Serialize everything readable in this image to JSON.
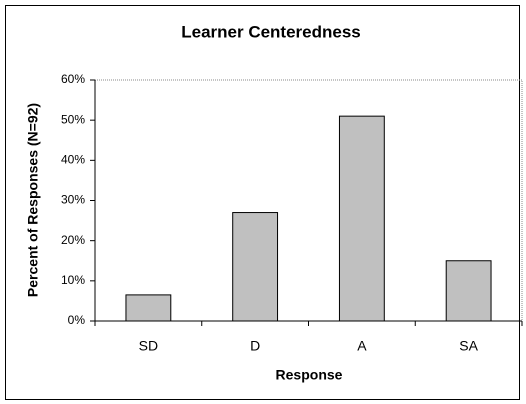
{
  "chart_data": {
    "type": "bar",
    "title": "Learner Centeredness",
    "xlabel": "Response",
    "ylabel": "Percent of Responses (N=92)",
    "categories": [
      "SD",
      "D",
      "A",
      "SA"
    ],
    "values": [
      6.5,
      27,
      51,
      15
    ],
    "color": "#c0c0c0",
    "ylim": [
      0,
      60
    ],
    "yticks": [
      {
        "value": 0,
        "label": "0%"
      },
      {
        "value": 10,
        "label": "10%"
      },
      {
        "value": 20,
        "label": "20%"
      },
      {
        "value": 30,
        "label": "30%"
      },
      {
        "value": 40,
        "label": "40%"
      },
      {
        "value": 50,
        "label": "50%"
      },
      {
        "value": 60,
        "label": "60%"
      }
    ],
    "grid": false
  }
}
